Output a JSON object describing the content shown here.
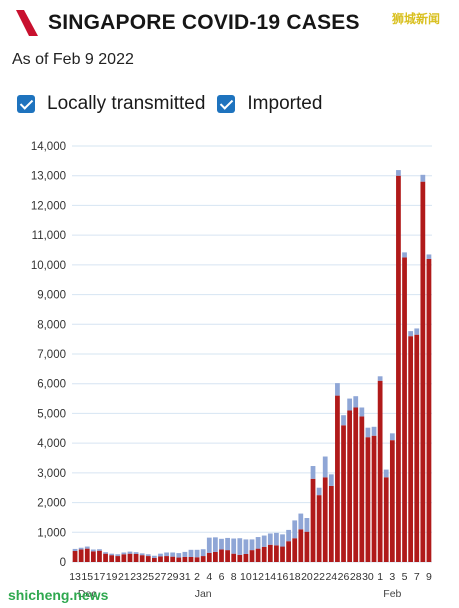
{
  "header": {
    "title": "SINGAPORE COVID-19 CASES",
    "subtitle": "As of Feb 9 2022",
    "watermark_top": "狮城新闻",
    "watermark_bottom": "shicheng.news"
  },
  "colors": {
    "local": "#b01a1a",
    "imported": "#8fa6d6",
    "checkbox": "#1e73be",
    "grid": "#d6e4f2",
    "logo": "#c8102e"
  },
  "legend": [
    {
      "label": "Locally transmitted",
      "checked": true,
      "color": "#b01a1a"
    },
    {
      "label": "Imported",
      "checked": true,
      "color": "#8fa6d6"
    }
  ],
  "chart_data": {
    "type": "bar",
    "stacked": true,
    "title": "SINGAPORE COVID-19 CASES",
    "ylim": [
      0,
      14000
    ],
    "yticks": [
      "0",
      "1,000",
      "2,000",
      "3,000",
      "4,000",
      "5,000",
      "6,000",
      "7,000",
      "8,000",
      "9,000",
      "10,000",
      "11,000",
      "12,000",
      "13,000",
      "14,000"
    ],
    "grid": true,
    "categories": [
      "13",
      "14",
      "15",
      "16",
      "17",
      "18",
      "19",
      "20",
      "21",
      "22",
      "23",
      "24",
      "25",
      "26",
      "27",
      "28",
      "29",
      "30",
      "31",
      "1",
      "2",
      "3",
      "4",
      "5",
      "6",
      "7",
      "8",
      "9",
      "10",
      "11",
      "12",
      "13",
      "14",
      "15",
      "16",
      "17",
      "18",
      "19",
      "20",
      "21",
      "22",
      "23",
      "24",
      "25",
      "26",
      "27",
      "28",
      "29",
      "30",
      "31",
      "1",
      "2",
      "3",
      "4",
      "5",
      "6",
      "7",
      "8",
      "9"
    ],
    "x_tick_labels": [
      {
        "index": 0,
        "label": "13"
      },
      {
        "index": 2,
        "label": "15"
      },
      {
        "index": 4,
        "label": "17"
      },
      {
        "index": 6,
        "label": "19"
      },
      {
        "index": 8,
        "label": "21"
      },
      {
        "index": 10,
        "label": "23"
      },
      {
        "index": 12,
        "label": "25"
      },
      {
        "index": 14,
        "label": "27"
      },
      {
        "index": 16,
        "label": "29"
      },
      {
        "index": 18,
        "label": "31"
      },
      {
        "index": 20,
        "label": "2"
      },
      {
        "index": 22,
        "label": "4"
      },
      {
        "index": 24,
        "label": "6"
      },
      {
        "index": 26,
        "label": "8"
      },
      {
        "index": 28,
        "label": "10"
      },
      {
        "index": 30,
        "label": "12"
      },
      {
        "index": 32,
        "label": "14"
      },
      {
        "index": 34,
        "label": "16"
      },
      {
        "index": 36,
        "label": "18"
      },
      {
        "index": 38,
        "label": "20"
      },
      {
        "index": 40,
        "label": "22"
      },
      {
        "index": 42,
        "label": "24"
      },
      {
        "index": 44,
        "label": "26"
      },
      {
        "index": 46,
        "label": "28"
      },
      {
        "index": 48,
        "label": "30"
      },
      {
        "index": 50,
        "label": "1"
      },
      {
        "index": 52,
        "label": "3"
      },
      {
        "index": 54,
        "label": "5"
      },
      {
        "index": 56,
        "label": "7"
      },
      {
        "index": 58,
        "label": "9"
      }
    ],
    "month_labels": [
      {
        "index": 2,
        "label": "Dec"
      },
      {
        "index": 21,
        "label": "Jan"
      },
      {
        "index": 52,
        "label": "Feb"
      }
    ],
    "series": [
      {
        "name": "Locally transmitted",
        "color": "#b01a1a",
        "values": [
          370,
          420,
          450,
          360,
          380,
          280,
          230,
          200,
          260,
          280,
          270,
          230,
          200,
          140,
          190,
          200,
          180,
          150,
          170,
          170,
          160,
          200,
          310,
          340,
          420,
          400,
          280,
          240,
          270,
          400,
          450,
          510,
          580,
          560,
          520,
          700,
          800,
          1100,
          1020,
          2800,
          2250,
          2850,
          2560,
          5600,
          4600,
          5100,
          5200,
          4900,
          4200,
          4250,
          6100,
          2850,
          4100,
          13000,
          10250,
          7600,
          7650,
          12800,
          10200
        ]
      },
      {
        "name": "Imported",
        "color": "#8fa6d6",
        "values": [
          70,
          60,
          70,
          60,
          50,
          50,
          50,
          60,
          60,
          70,
          60,
          60,
          60,
          70,
          90,
          120,
          140,
          150,
          170,
          240,
          250,
          230,
          510,
          490,
          360,
          410,
          510,
          560,
          490,
          360,
          390,
          380,
          380,
          420,
          410,
          380,
          600,
          530,
          460,
          430,
          250,
          700,
          390,
          420,
          340,
          400,
          380,
          300,
          320,
          300,
          150,
          260,
          230,
          190,
          170,
          170,
          210,
          230,
          150
        ]
      }
    ]
  }
}
